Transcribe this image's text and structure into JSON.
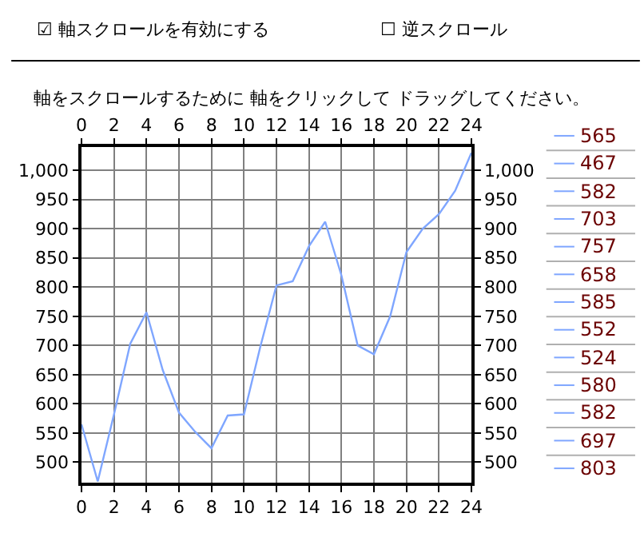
{
  "chart_data": [
    {
      "type": "line",
      "annotations": [
        "☑ 軸スクロールを有効にする",
        "☐ 逆スクロール",
        "軸をスクロールするために 軸をクリックして ドラッグしてください。"
      ],
      "x": [
        0,
        1,
        2,
        3,
        4,
        5,
        6,
        7,
        8,
        9,
        10,
        11,
        12,
        13,
        14,
        15,
        16,
        17,
        18,
        19,
        20,
        21,
        22,
        23,
        24
      ],
      "series": [
        {
          "color": "#7fa6ff",
          "values": [
            565,
            467,
            582,
            703,
            757,
            658,
            585,
            552,
            524,
            580,
            582,
            697,
            803,
            810,
            870,
            912,
            820,
            700,
            685,
            750,
            860,
            900,
            925,
            965,
            1030
          ]
        }
      ],
      "xlim": [
        0,
        24
      ],
      "xticks": [
        0,
        2,
        4,
        6,
        8,
        10,
        12,
        14,
        16,
        18,
        20,
        22,
        24
      ],
      "x2lim": [
        0,
        24
      ],
      "x2ticks": [
        0,
        2,
        4,
        6,
        8,
        10,
        12,
        14,
        16,
        18,
        20,
        22,
        24
      ],
      "ylim": [
        465,
        1040
      ],
      "yticks": [
        500,
        550,
        600,
        650,
        700,
        750,
        800,
        850,
        900,
        950,
        {
          "value": 1000,
          "label": "1,000"
        }
      ],
      "y2lim": [
        465,
        1040
      ],
      "y2ticks": [
        500,
        550,
        600,
        650,
        700,
        750,
        800,
        850,
        900,
        950,
        {
          "value": 1000,
          "label": "1,000"
        }
      ],
      "grid": true,
      "marker": "none",
      "line_style": "solid"
    },
    {
      "type": "other",
      "color": "#7fa6ff",
      "annotations": [
        "565",
        "467",
        "582",
        "703",
        "757",
        "658",
        "585",
        "552",
        "524",
        "580",
        "582",
        "697",
        "803"
      ]
    }
  ]
}
